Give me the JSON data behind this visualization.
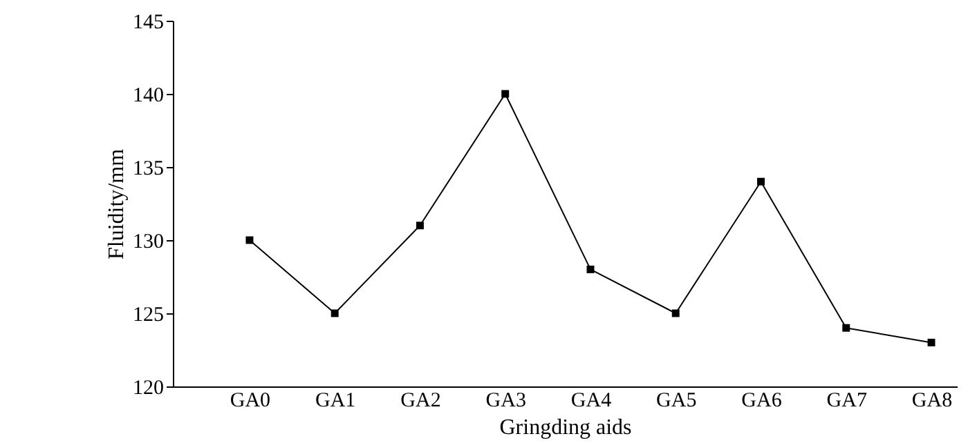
{
  "chart_data": {
    "type": "line",
    "xlabel": "Gringding aids",
    "ylabel": "Fluidity/mm",
    "categories": [
      "GA0",
      "GA1",
      "GA2",
      "GA3",
      "GA4",
      "GA5",
      "GA6",
      "GA7",
      "GA8"
    ],
    "series": [
      {
        "color": "#000000",
        "values": [
          130,
          125,
          131,
          140,
          128,
          125,
          134,
          124,
          123
        ]
      }
    ],
    "ylim": [
      120,
      145
    ],
    "yticks": [
      120,
      125,
      130,
      135,
      140,
      145
    ],
    "marker": "square",
    "line_style": "solid",
    "grid": false,
    "legend": false
  }
}
